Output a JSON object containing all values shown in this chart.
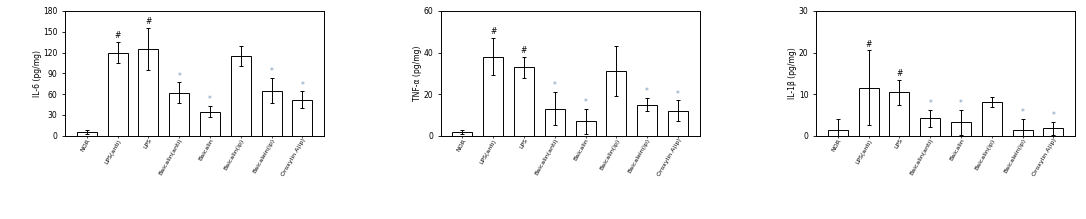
{
  "categories": [
    "NOR",
    "LPS(anti)",
    "LPS",
    "Baicalin(anti)",
    "Baicalin",
    "Baicalin(ip)",
    "Baicalein(ip)",
    "Oroxylin A(ip)"
  ],
  "il6": {
    "values": [
      5,
      120,
      125,
      62,
      35,
      115,
      65,
      52
    ],
    "errors": [
      3,
      15,
      30,
      15,
      8,
      15,
      18,
      12
    ],
    "ylabel": "IL-6 (pg/mg)",
    "ylim": [
      0,
      180
    ],
    "yticks": [
      0,
      30,
      60,
      90,
      120,
      150,
      180
    ],
    "annotations": [
      "",
      "#",
      "#",
      "*",
      "*",
      "",
      "*",
      "*"
    ]
  },
  "tnfa": {
    "values": [
      2,
      38,
      33,
      13,
      7,
      31,
      15,
      12
    ],
    "errors": [
      1,
      9,
      5,
      8,
      6,
      12,
      3,
      5
    ],
    "ylabel": "TNF-α (pg/mg)",
    "ylim": [
      0,
      60
    ],
    "yticks": [
      0,
      20,
      40,
      60
    ],
    "annotations": [
      "",
      "#",
      "#",
      "*",
      "*",
      "",
      "*",
      "*"
    ]
  },
  "il1b": {
    "values": [
      1.5,
      11.5,
      10.5,
      4.2,
      3.2,
      8.2,
      1.5,
      1.8
    ],
    "errors": [
      2.5,
      9,
      3,
      2,
      3,
      1.2,
      2.5,
      1.5
    ],
    "ylabel": "IL-1β (pg/mg)",
    "ylim": [
      0,
      30
    ],
    "yticks": [
      0,
      10,
      20,
      30
    ],
    "annotations": [
      "",
      "#",
      "#",
      "*",
      "*",
      "",
      "*",
      "*"
    ]
  },
  "bar_color": "#ffffff",
  "bar_edgecolor": "#000000",
  "annotation_hash_color": "#000000",
  "annotation_star_color": "#7799bb",
  "fig_facecolor": "#ffffff",
  "figsize": [
    10.86,
    2.19
  ],
  "dpi": 100
}
